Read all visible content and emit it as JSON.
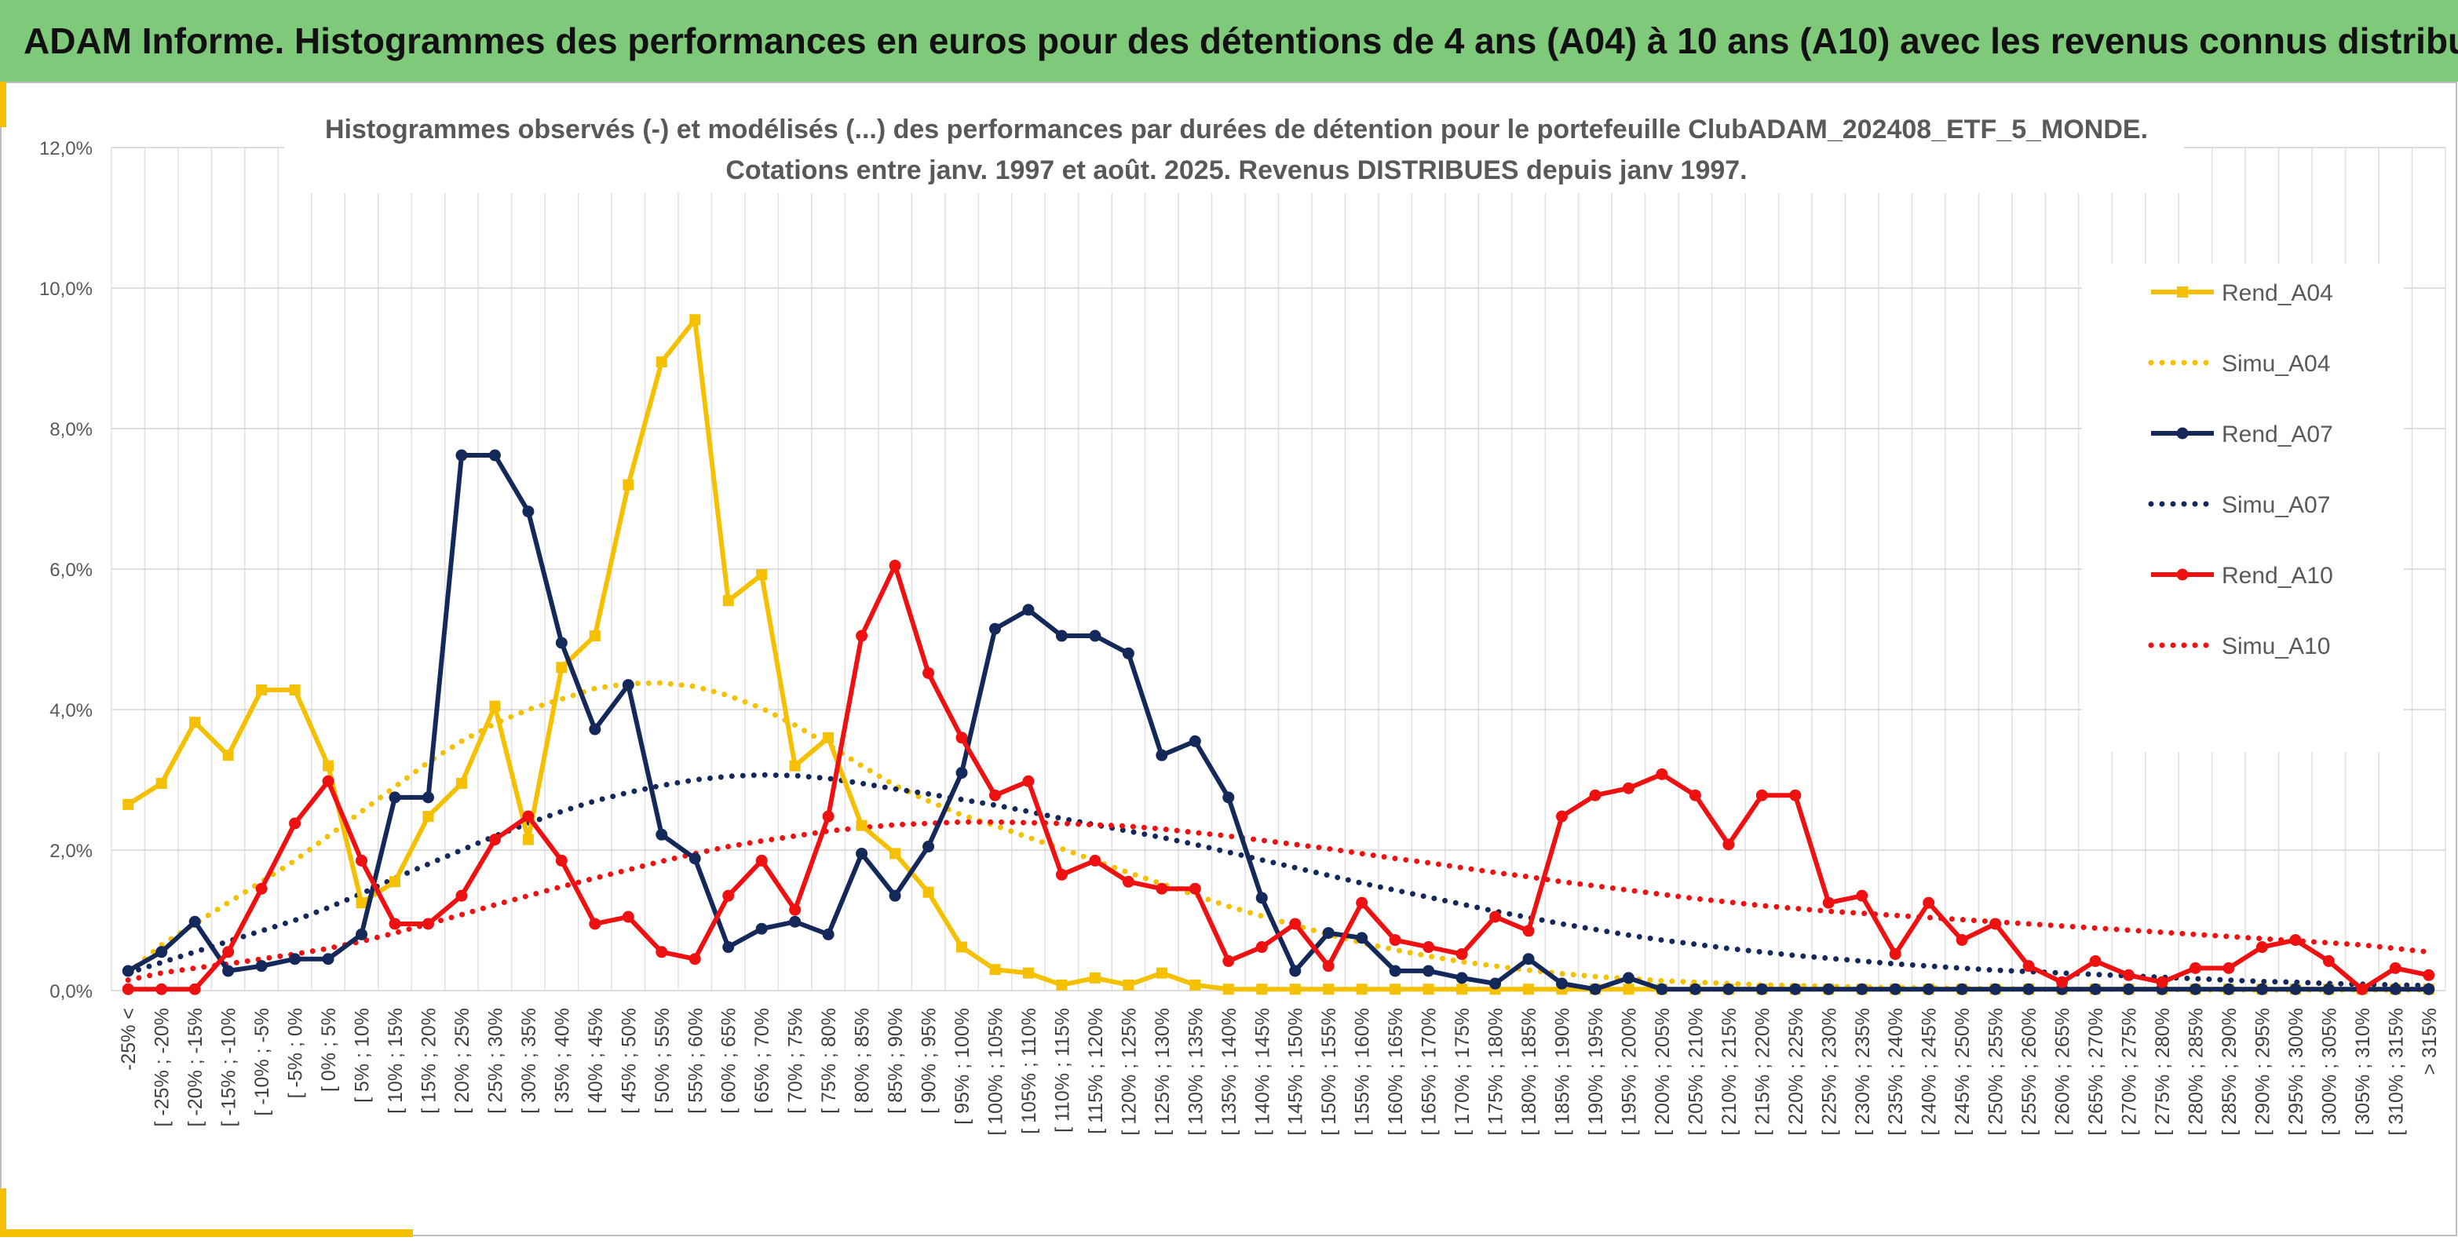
{
  "header": {
    "title": "ADAM Informe. Histogrammes des performances en euros pour des détentions de 4 ans (A04) à 10 ans (A10) avec les revenus connus distribués"
  },
  "colors": {
    "banner": "#7fc97a",
    "accent_yellow": "#f5c000",
    "A04": "#f5c000",
    "A07": "#14285a",
    "A10": "#ee1111",
    "grid": "#d9d9d9"
  },
  "chart_data": {
    "type": "line",
    "title_line1": "Histogrammes observés (-) et modélisés (...) des performances par durées de détention pour le portefeuille ClubADAM_202408_ETF_5_MONDE.",
    "title_line2": "Cotations entre janv. 1997 et août. 2025. Revenus DISTRIBUES depuis janv 1997.",
    "xlabel": "",
    "ylabel": "",
    "ylim": [
      0,
      12
    ],
    "yticks": [
      "0,0%",
      "2,0%",
      "4,0%",
      "6,0%",
      "8,0%",
      "10,0%",
      "12,0%"
    ],
    "grid": true,
    "legend_position": "right",
    "categories": [
      "-25% <",
      "[ -25% ; -20%",
      "[ -20% ; -15%",
      "[ -15% ; -10%",
      "[ -10% ; -5%",
      "[ -5% ; 0%",
      "[ 0% ; 5%",
      "[ 5% ; 10%",
      "[ 10% ; 15%",
      "[ 15% ; 20%",
      "[ 20% ; 25%",
      "[ 25% ; 30%",
      "[ 30% ; 35%",
      "[ 35% ; 40%",
      "[ 40% ; 45%",
      "[ 45% ; 50%",
      "[ 50% ; 55%",
      "[ 55% ; 60%",
      "[ 60% ; 65%",
      "[ 65% ; 70%",
      "[ 70% ; 75%",
      "[ 75% ; 80%",
      "[ 80% ; 85%",
      "[ 85% ; 90%",
      "[ 90% ; 95%",
      "[ 95% ; 100%",
      "[ 100% ; 105%",
      "[ 105% ; 110%",
      "[ 110% ; 115%",
      "[ 115% ; 120%",
      "[ 120% ; 125%",
      "[ 125% ; 130%",
      "[ 130% ; 135%",
      "[ 135% ; 140%",
      "[ 140% ; 145%",
      "[ 145% ; 150%",
      "[ 150% ; 155%",
      "[ 155% ; 160%",
      "[ 160% ; 165%",
      "[ 165% ; 170%",
      "[ 170% ; 175%",
      "[ 175% ; 180%",
      "[ 180% ; 185%",
      "[ 185% ; 190%",
      "[ 190% ; 195%",
      "[ 195% ; 200%",
      "[ 200% ; 205%",
      "[ 205% ; 210%",
      "[ 210% ; 215%",
      "[ 215% ; 220%",
      "[ 220% ; 225%",
      "[ 225% ; 230%",
      "[ 230% ; 235%",
      "[ 235% ; 240%",
      "[ 240% ; 245%",
      "[ 245% ; 250%",
      "[ 250% ; 255%",
      "[ 255% ; 260%",
      "[ 260% ; 265%",
      "[ 265% ; 270%",
      "[ 270% ; 275%",
      "[ 275% ; 280%",
      "[ 280% ; 285%",
      "[ 285% ; 290%",
      "[ 290% ; 295%",
      "[ 295% ; 300%",
      "[ 300% ; 305%",
      "[ 305% ; 310%",
      "[ 310% ; 315%",
      "> 315%"
    ],
    "series": [
      {
        "name": "Rend_A04",
        "style": "solid",
        "marker": "square",
        "color": "#f5c000",
        "values": [
          2.65,
          2.95,
          3.82,
          3.35,
          4.28,
          4.28,
          3.2,
          1.25,
          1.55,
          2.48,
          2.95,
          4.05,
          2.15,
          4.6,
          5.05,
          7.2,
          8.95,
          9.55,
          5.55,
          5.92,
          3.2,
          3.6,
          2.35,
          1.95,
          1.4,
          0.62,
          0.3,
          0.25,
          0.08,
          0.18,
          0.08,
          0.25,
          0.08,
          0.02,
          0.02,
          0.02,
          0.02,
          0.02,
          0.02,
          0.02,
          0.02,
          0.02,
          0.02,
          0.02,
          0.02,
          0.02,
          0.02,
          0.02,
          0.02,
          0.02,
          0.02,
          0.02,
          0.02,
          0.02,
          0.02,
          0.02,
          0.02,
          0.02,
          0.02,
          0.02,
          0.02,
          0.02,
          0.02,
          0.02,
          0.02,
          0.02,
          0.02,
          0.02,
          0.02,
          0.02
        ]
      },
      {
        "name": "Simu_A04",
        "style": "dotted",
        "color": "#f5c000",
        "values": [
          0.25,
          0.65,
          0.95,
          1.25,
          1.55,
          1.85,
          2.2,
          2.55,
          2.9,
          3.25,
          3.55,
          3.8,
          4.0,
          4.15,
          4.3,
          4.37,
          4.38,
          4.33,
          4.2,
          4.02,
          3.78,
          3.5,
          3.2,
          2.92,
          2.7,
          2.5,
          2.35,
          2.18,
          2.02,
          1.85,
          1.68,
          1.52,
          1.36,
          1.2,
          1.06,
          0.93,
          0.8,
          0.68,
          0.58,
          0.49,
          0.41,
          0.35,
          0.29,
          0.24,
          0.2,
          0.17,
          0.14,
          0.12,
          0.1,
          0.08,
          0.07,
          0.06,
          0.05,
          0.04,
          0.04,
          0.03,
          0.03,
          0.02,
          0.02,
          0.02,
          0.02,
          0.02,
          0.01,
          0.01,
          0.01,
          0.01,
          0.01,
          0.01,
          0.01,
          0.01
        ]
      },
      {
        "name": "Rend_A07",
        "style": "solid",
        "marker": "circle",
        "color": "#14285a",
        "values": [
          0.28,
          0.55,
          0.98,
          0.28,
          0.35,
          0.45,
          0.45,
          0.8,
          2.75,
          2.75,
          7.62,
          7.62,
          6.82,
          4.95,
          3.72,
          4.35,
          2.22,
          1.88,
          0.62,
          0.88,
          0.98,
          0.8,
          1.95,
          1.35,
          2.05,
          3.1,
          5.15,
          5.42,
          5.05,
          5.05,
          4.8,
          3.35,
          3.55,
          2.75,
          1.32,
          0.28,
          0.82,
          0.75,
          0.28,
          0.28,
          0.18,
          0.1,
          0.45,
          0.1,
          0.02,
          0.18,
          0.02,
          0.02,
          0.02,
          0.02,
          0.02,
          0.02,
          0.02,
          0.02,
          0.02,
          0.02,
          0.02,
          0.02,
          0.02,
          0.02,
          0.02,
          0.02,
          0.02,
          0.02,
          0.02,
          0.02,
          0.02,
          0.02,
          0.02,
          0.02
        ]
      },
      {
        "name": "Simu_A07",
        "style": "dotted",
        "color": "#14285a",
        "values": [
          0.25,
          0.4,
          0.55,
          0.7,
          0.85,
          1.0,
          1.18,
          1.38,
          1.6,
          1.8,
          2.0,
          2.2,
          2.38,
          2.55,
          2.7,
          2.82,
          2.92,
          3.0,
          3.05,
          3.07,
          3.06,
          3.02,
          2.95,
          2.87,
          2.8,
          2.72,
          2.64,
          2.55,
          2.45,
          2.36,
          2.27,
          2.18,
          2.08,
          1.97,
          1.86,
          1.75,
          1.64,
          1.53,
          1.43,
          1.33,
          1.23,
          1.13,
          1.04,
          0.95,
          0.87,
          0.79,
          0.72,
          0.66,
          0.6,
          0.55,
          0.5,
          0.46,
          0.42,
          0.38,
          0.35,
          0.32,
          0.29,
          0.27,
          0.25,
          0.23,
          0.21,
          0.19,
          0.17,
          0.15,
          0.13,
          0.12,
          0.1,
          0.09,
          0.08,
          0.07
        ]
      },
      {
        "name": "Rend_A10",
        "style": "solid",
        "marker": "circle",
        "color": "#ee1111",
        "values": [
          0.02,
          0.02,
          0.02,
          0.55,
          1.45,
          2.38,
          2.98,
          1.85,
          0.95,
          0.95,
          1.35,
          2.15,
          2.48,
          1.85,
          0.95,
          1.05,
          0.55,
          0.45,
          1.35,
          1.85,
          1.15,
          2.48,
          5.05,
          6.05,
          4.52,
          3.6,
          2.78,
          2.98,
          1.65,
          1.85,
          1.55,
          1.45,
          1.45,
          0.42,
          0.62,
          0.95,
          0.35,
          1.25,
          0.72,
          0.62,
          0.52,
          1.05,
          0.85,
          2.48,
          2.78,
          2.88,
          3.08,
          2.78,
          2.08,
          2.78,
          2.78,
          1.25,
          1.35,
          0.52,
          1.25,
          0.72,
          0.95,
          0.35,
          0.12,
          0.42,
          0.22,
          0.12,
          0.32,
          0.32,
          0.62,
          0.72,
          0.42,
          0.02,
          0.32,
          0.22
        ]
      },
      {
        "name": "Simu_A10",
        "style": "dotted",
        "color": "#ee1111",
        "values": [
          0.15,
          0.25,
          0.32,
          0.38,
          0.45,
          0.52,
          0.6,
          0.7,
          0.82,
          0.95,
          1.08,
          1.22,
          1.35,
          1.48,
          1.6,
          1.72,
          1.84,
          1.95,
          2.05,
          2.13,
          2.2,
          2.27,
          2.32,
          2.36,
          2.38,
          2.4,
          2.4,
          2.39,
          2.38,
          2.36,
          2.34,
          2.3,
          2.25,
          2.2,
          2.14,
          2.08,
          2.02,
          1.95,
          1.88,
          1.82,
          1.75,
          1.68,
          1.62,
          1.55,
          1.49,
          1.43,
          1.37,
          1.31,
          1.26,
          1.21,
          1.17,
          1.13,
          1.1,
          1.07,
          1.04,
          1.01,
          0.98,
          0.95,
          0.92,
          0.89,
          0.86,
          0.83,
          0.8,
          0.77,
          0.74,
          0.71,
          0.68,
          0.65,
          0.6,
          0.55
        ]
      }
    ]
  }
}
